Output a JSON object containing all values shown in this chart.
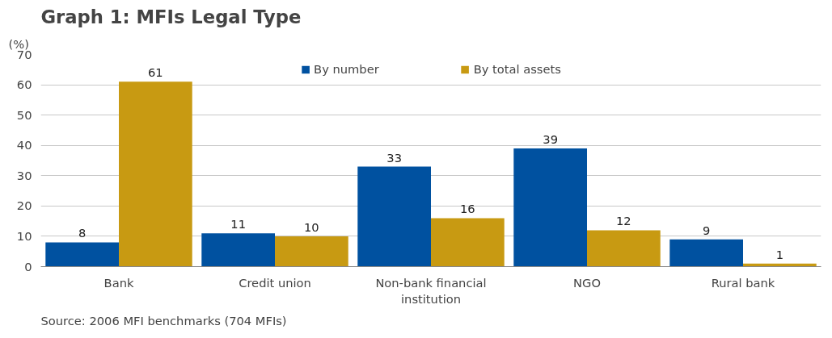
{
  "chart_data": {
    "type": "bar",
    "title": "Graph 1: MFIs Legal Type",
    "ylabel": "(%)",
    "categories": [
      "Bank",
      "Credit union",
      "Non-bank financial institution",
      "NGO",
      "Rural bank"
    ],
    "series": [
      {
        "name": "By number",
        "color": "#0051a0",
        "values": [
          8,
          11,
          33,
          39,
          9
        ]
      },
      {
        "name": "By total assets",
        "color": "#c89a12",
        "values": [
          61,
          10,
          16,
          12,
          1
        ]
      }
    ],
    "ylim": [
      0,
      70
    ],
    "yticks": [
      0,
      10,
      20,
      30,
      40,
      50,
      60,
      70
    ],
    "grid": "y",
    "legend": "top",
    "data_labels": true,
    "annotations": [
      "Source: 2006 MFI benchmarks (704 MFIs)"
    ]
  }
}
